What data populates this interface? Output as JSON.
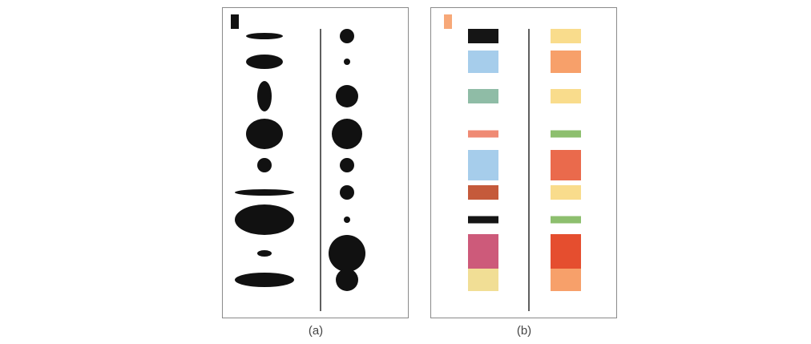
{
  "panels": [
    {
      "id": "a",
      "caption": "(a)",
      "legend_color": "#111111",
      "left_column": [
        {
          "shape": "ellipse",
          "rx": 23,
          "ry": 4
        },
        {
          "shape": "ellipse",
          "rx": 23,
          "ry": 9
        },
        {
          "shape": "ellipse",
          "rx": 9,
          "ry": 19
        },
        {
          "shape": "ellipse",
          "rx": 23,
          "ry": 19
        },
        {
          "shape": "ellipse",
          "rx": 9,
          "ry": 9
        },
        {
          "shape": "ellipse",
          "rx": 37,
          "ry": 4
        },
        {
          "shape": "ellipse",
          "rx": 37,
          "ry": 19
        },
        {
          "shape": "ellipse",
          "rx": 9,
          "ry": 4
        },
        {
          "shape": "ellipse",
          "rx": 37,
          "ry": 9
        }
      ],
      "right_column": [
        {
          "shape": "circle",
          "r": 9
        },
        {
          "shape": "circle",
          "r": 4
        },
        {
          "shape": "circle",
          "r": 14
        },
        {
          "shape": "circle",
          "r": 19
        },
        {
          "shape": "circle",
          "r": 9
        },
        {
          "shape": "circle",
          "r": 9
        },
        {
          "shape": "circle",
          "r": 4
        },
        {
          "shape": "circle",
          "r": 23
        },
        {
          "shape": "circle",
          "r": 14
        }
      ]
    },
    {
      "id": "b",
      "caption": "(b)",
      "legend_color": "#f7a878",
      "left_column": [
        {
          "shape": "rect",
          "h": 18,
          "color": "#151515"
        },
        {
          "shape": "rect",
          "h": 28,
          "color": "#a6cdeb"
        },
        {
          "shape": "rect",
          "h": 18,
          "color": "#8fbca6"
        },
        {
          "shape": "rect",
          "h": 9,
          "color": "#ef8a74"
        },
        {
          "shape": "rect",
          "h": 38,
          "color": "#a6cdeb"
        },
        {
          "shape": "rect",
          "h": 18,
          "color": "#c55a3b"
        },
        {
          "shape": "rect",
          "h": 9,
          "color": "#151515"
        },
        {
          "shape": "rect",
          "h": 48,
          "color": "#cd5a7a"
        },
        {
          "shape": "rect",
          "h": 28,
          "color": "#f1de95"
        }
      ],
      "right_column": [
        {
          "shape": "rect",
          "h": 18,
          "color": "#f9dc8c"
        },
        {
          "shape": "rect",
          "h": 28,
          "color": "#f7a06a"
        },
        {
          "shape": "rect",
          "h": 18,
          "color": "#f9dc8c"
        },
        {
          "shape": "rect",
          "h": 9,
          "color": "#8dbf6e"
        },
        {
          "shape": "rect",
          "h": 38,
          "color": "#ea6a4c"
        },
        {
          "shape": "rect",
          "h": 18,
          "color": "#f9dc8c"
        },
        {
          "shape": "rect",
          "h": 9,
          "color": "#8dbf6e"
        },
        {
          "shape": "rect",
          "h": 48,
          "color": "#e54e2f"
        },
        {
          "shape": "rect",
          "h": 28,
          "color": "#f7a06a"
        }
      ]
    }
  ]
}
